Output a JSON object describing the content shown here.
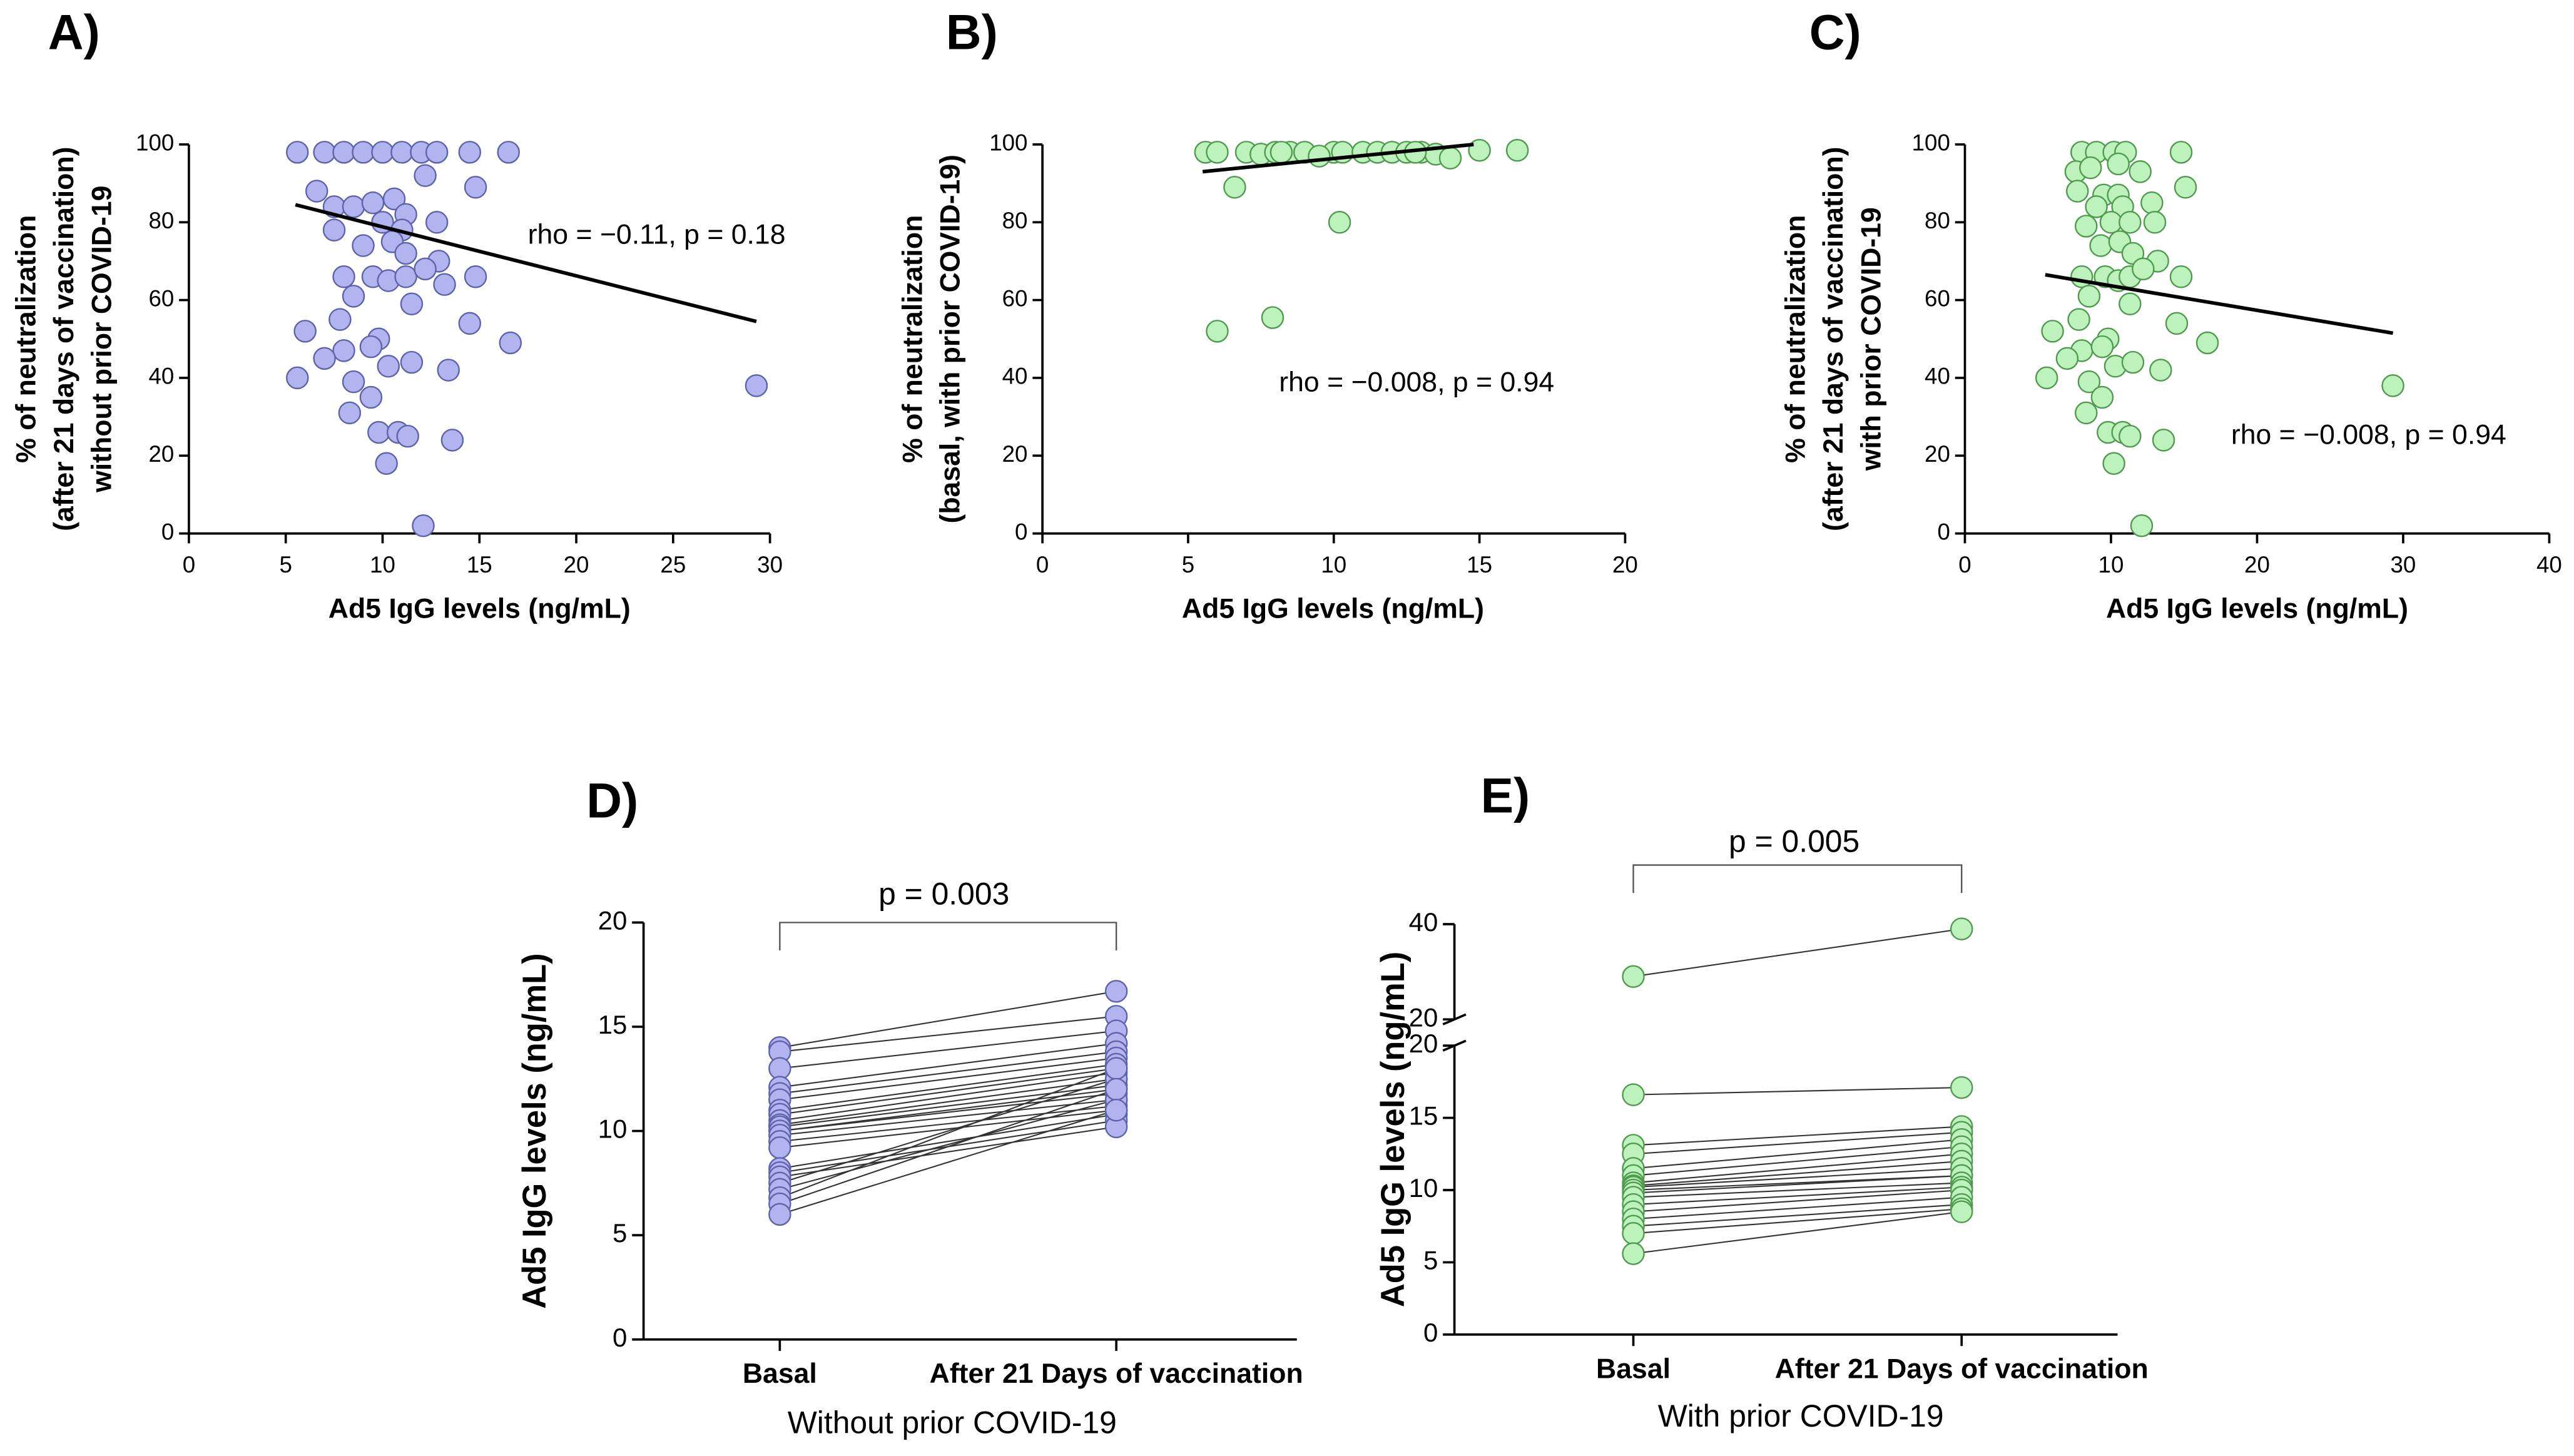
{
  "chart_data": [
    {
      "type": "scatter",
      "title": "A)",
      "color": "#b1b4ee",
      "edge": "#5e62a8",
      "xlabel": "Ad5 IgG levels (ng/mL)",
      "ylabel": [
        "% of neutralization",
        "(after 21 days of vaccination)",
        "without prior COVID-19"
      ],
      "annotation": "rho = −0.11, p = 0.18",
      "xlim": [
        0,
        30
      ],
      "xticks": [
        0,
        5,
        10,
        15,
        20,
        25,
        30
      ],
      "ylim": [
        0,
        100
      ],
      "yticks": [
        0,
        20,
        40,
        60,
        80,
        100
      ],
      "x": [
        5.6,
        7,
        8,
        9,
        10,
        11,
        12,
        12.8,
        14.5,
        16.5,
        6.6,
        7.5,
        8.5,
        9.5,
        10.6,
        11.2,
        12.2,
        14.8,
        7.5,
        10,
        11,
        12.8,
        9,
        10.5,
        11.2,
        12.9,
        8,
        9.5,
        10.3,
        11.2,
        12.2,
        13.2,
        14.8,
        11.5,
        8.5,
        7.8,
        14.5,
        6,
        9.8,
        8,
        9.4,
        16.6,
        7,
        10.3,
        11.5,
        5.6,
        8.5,
        13.4,
        8.3,
        9.4,
        9.8,
        10.8,
        11.3,
        13.6,
        10.2,
        12.1,
        29.3
      ],
      "y": [
        98,
        98,
        98,
        98,
        98,
        98,
        98,
        98,
        98,
        98,
        88,
        84,
        84,
        85,
        86,
        82,
        92,
        89,
        78,
        80,
        78,
        80,
        74,
        75,
        72,
        70,
        66,
        66,
        65,
        66,
        68,
        64,
        66,
        59,
        61,
        55,
        54,
        52,
        50,
        47,
        48,
        49,
        45,
        43,
        44,
        40,
        39,
        42,
        31,
        35,
        26,
        26,
        25,
        24,
        18,
        2,
        38
      ],
      "trendline": {
        "x": [
          5.5,
          29.3
        ],
        "y": [
          84.5,
          54.5
        ]
      }
    },
    {
      "type": "scatter",
      "title": "B)",
      "color": "#bdf2bd",
      "edge": "#4f9a4f",
      "xlabel": "Ad5 IgG levels (ng/mL)",
      "ylabel": [
        "% of neutralization",
        "(basal, with prior COVID-19)"
      ],
      "annotation": "rho = −0.008, p = 0.94",
      "xlim": [
        0,
        20
      ],
      "xticks": [
        0,
        5,
        10,
        15,
        20
      ],
      "ylim": [
        0,
        100
      ],
      "yticks": [
        0,
        20,
        40,
        60,
        80,
        100
      ],
      "x": [
        5.6,
        6,
        7,
        7.5,
        8,
        8.5,
        9,
        10,
        10.3,
        11,
        11.5,
        12,
        12.5,
        13,
        13.5,
        14,
        15,
        16.3,
        6.6,
        10.2,
        7.9,
        6,
        9.5,
        12.8,
        8.2
      ],
      "y": [
        98,
        98,
        98,
        97.5,
        98,
        98,
        98,
        98,
        98,
        98,
        98,
        98,
        98,
        98,
        97.5,
        96.5,
        98.5,
        98.5,
        89,
        80,
        55.5,
        52,
        97,
        98,
        98
      ],
      "trendline": {
        "x": [
          5.5,
          14.8
        ],
        "y": [
          93,
          100
        ]
      }
    },
    {
      "type": "scatter",
      "title": "C)",
      "color": "#bdf2bd",
      "edge": "#4f9a4f",
      "xlabel": "Ad5 IgG levels (ng/mL)",
      "ylabel": [
        "% of neutralization",
        "(after 21 days of vaccination)",
        "with prior COVID-19"
      ],
      "annotation": "rho = −0.008, p = 0.94",
      "xlim": [
        0,
        40
      ],
      "xticks": [
        0,
        10,
        20,
        30,
        40
      ],
      "ylim": [
        0,
        100
      ],
      "yticks": [
        0,
        20,
        40,
        60,
        80,
        100
      ],
      "x": [
        8,
        9,
        10.2,
        11,
        14.8,
        7.6,
        8.6,
        10.5,
        12,
        9.5,
        10.5,
        7.7,
        15.1,
        9,
        10.8,
        12.8,
        8.3,
        10,
        11.3,
        13,
        9.3,
        10.6,
        11.5,
        13.2,
        8,
        9.6,
        10.5,
        11.3,
        12.2,
        14.8,
        11.3,
        8.5,
        7.8,
        14.5,
        6,
        9.8,
        8,
        9.4,
        16.6,
        7,
        10.3,
        11.5,
        5.6,
        8.5,
        13.4,
        8.3,
        9.4,
        9.8,
        10.8,
        11.3,
        13.6,
        10.2,
        12.1,
        29.3
      ],
      "y": [
        98,
        98,
        98,
        98,
        98,
        93,
        94,
        95,
        93,
        87,
        87,
        88,
        89,
        84,
        84,
        85,
        79,
        80,
        80,
        80,
        74,
        75,
        72,
        70,
        66,
        66,
        65,
        66,
        68,
        66,
        59,
        61,
        55,
        54,
        52,
        50,
        47,
        48,
        49,
        45,
        43,
        44,
        40,
        39,
        42,
        31,
        35,
        26,
        26,
        25,
        24,
        18,
        2,
        38
      ],
      "trendline": {
        "x": [
          5.5,
          29.3
        ],
        "y": [
          66.5,
          51.5
        ]
      }
    },
    {
      "type": "paired",
      "title": "D)",
      "color": "#b1b4ee",
      "edge": "#5e62a8",
      "categories": [
        "Basal",
        "After 21 Days of vaccination"
      ],
      "xlabel": "Without prior COVID-19",
      "ylabel": "Ad5 IgG levels (ng/mL)",
      "annotation": "p = 0.003",
      "ylim": [
        0,
        20
      ],
      "yticks": [
        0,
        5,
        10,
        15,
        20
      ],
      "basal": [
        14,
        13.8,
        13,
        12.1,
        11.8,
        11.5,
        11,
        10.8,
        10.5,
        10.3,
        10.2,
        10,
        10,
        9.8,
        9.5,
        9.2,
        8.2,
        8,
        7.8,
        7.5,
        7.2,
        6.8,
        6.5,
        6
      ],
      "after": [
        16.7,
        15.5,
        14.8,
        14.2,
        13.8,
        13.5,
        13.2,
        13,
        12.8,
        12.5,
        12.2,
        12,
        11.8,
        11.5,
        11.2,
        11,
        10.8,
        10.5,
        10.2,
        12.5,
        11.5,
        13,
        12,
        11
      ]
    },
    {
      "type": "paired",
      "title": "E)",
      "color": "#bdf2bd",
      "edge": "#4f9a4f",
      "categories": [
        "Basal",
        "After 21 Days of vaccination"
      ],
      "xlabel": "With prior COVID-19",
      "ylabel": "Ad5 IgG levels (ng/mL)",
      "annotation": "p = 0.005",
      "ylim": [
        0,
        40
      ],
      "ybreak": [
        20,
        20
      ],
      "yticks": [
        0,
        5,
        10,
        15,
        20
      ],
      "yticks_upper": [
        20,
        40
      ],
      "basal": [
        29,
        16.6,
        13.1,
        12.5,
        11.5,
        11,
        10.5,
        10.3,
        10.2,
        10,
        9.8,
        9.5,
        9,
        8.5,
        8,
        7.5,
        7,
        5.6
      ],
      "after": [
        39,
        17.1,
        14.4,
        14,
        13.5,
        13,
        12.5,
        12,
        11.5,
        11,
        11,
        10.5,
        10.2,
        10,
        9.5,
        9,
        8.7,
        8.5
      ]
    }
  ]
}
